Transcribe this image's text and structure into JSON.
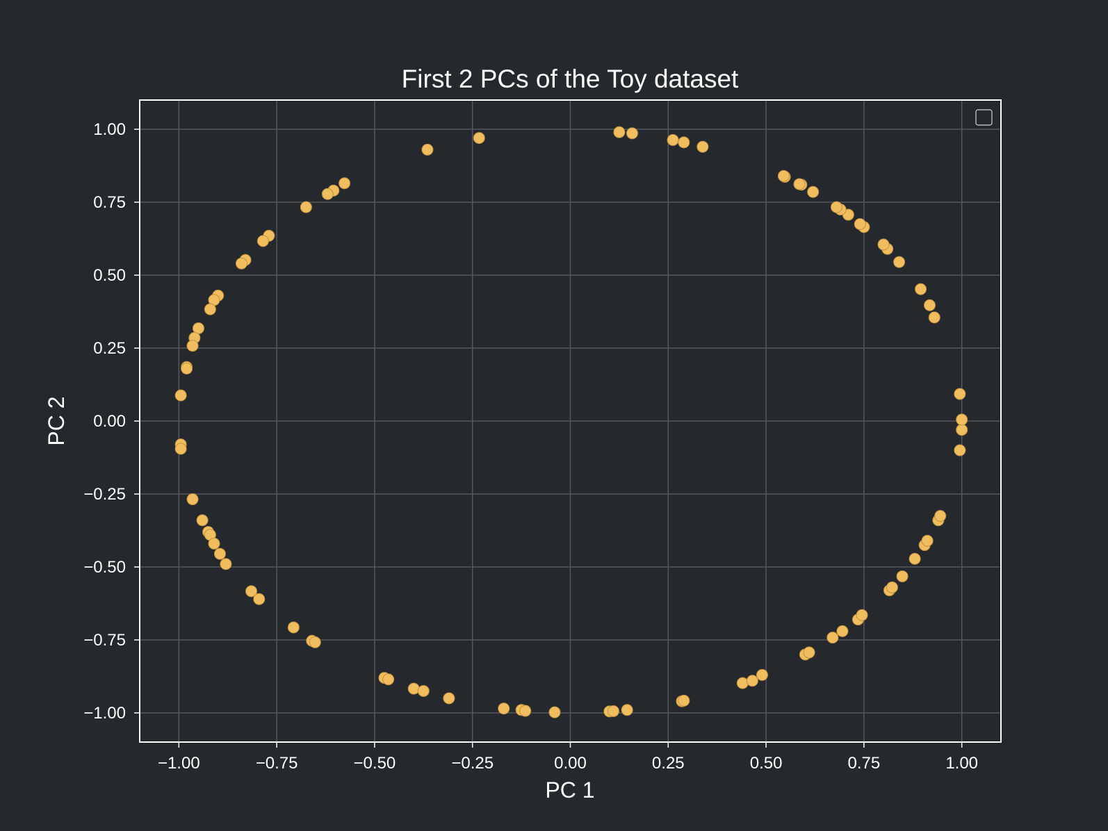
{
  "colors": {
    "background": "#25292e",
    "grid": "#54585d",
    "frame": "#ffffff",
    "marker_fill": "#f0be5f",
    "marker_edge": "#c09040",
    "text": "#ffffff"
  },
  "chart_data": {
    "type": "scatter",
    "title": "First 2 PCs of the Toy dataset",
    "xlabel": "PC 1",
    "ylabel": "PC 2",
    "xlim": [
      -1.1,
      1.1
    ],
    "ylim": [
      -1.1,
      1.1
    ],
    "xticks": [
      -1.0,
      -0.75,
      -0.5,
      -0.25,
      0.0,
      0.25,
      0.5,
      0.75,
      1.0
    ],
    "yticks": [
      -1.0,
      -0.75,
      -0.5,
      -0.25,
      0.0,
      0.25,
      0.5,
      0.75,
      1.0
    ],
    "xtick_labels": [
      "−1.00",
      "−0.75",
      "−0.50",
      "−0.25",
      "0.00",
      "0.25",
      "0.50",
      "0.75",
      "1.00"
    ],
    "ytick_labels": [
      "−1.00",
      "−0.75",
      "−0.50",
      "−0.25",
      "0.00",
      "0.25",
      "0.50",
      "0.75",
      "1.00"
    ],
    "grid": true,
    "legend": "top-right",
    "series": [
      {
        "points": [
          [
            0.125,
            0.99
          ],
          [
            0.158,
            0.986
          ],
          [
            0.262,
            0.963
          ],
          [
            0.29,
            0.955
          ],
          [
            0.338,
            0.94
          ],
          [
            -0.233,
            0.97
          ],
          [
            -0.365,
            0.93
          ],
          [
            -0.577,
            0.815
          ],
          [
            -0.605,
            0.79
          ],
          [
            -0.62,
            0.778
          ],
          [
            -0.675,
            0.733
          ],
          [
            -0.77,
            0.635
          ],
          [
            -0.785,
            0.617
          ],
          [
            -0.83,
            0.552
          ],
          [
            -0.84,
            0.54
          ],
          [
            -0.9,
            0.43
          ],
          [
            -0.91,
            0.415
          ],
          [
            -0.92,
            0.383
          ],
          [
            -0.95,
            0.318
          ],
          [
            -0.96,
            0.285
          ],
          [
            -0.965,
            0.258
          ],
          [
            -0.98,
            0.185
          ],
          [
            -0.98,
            0.18
          ],
          [
            -0.995,
            0.088
          ],
          [
            -0.995,
            -0.08
          ],
          [
            -0.995,
            -0.095
          ],
          [
            -0.965,
            -0.268
          ],
          [
            -0.94,
            -0.34
          ],
          [
            -0.925,
            -0.38
          ],
          [
            -0.92,
            -0.39
          ],
          [
            -0.91,
            -0.42
          ],
          [
            -0.895,
            -0.455
          ],
          [
            -0.88,
            -0.49
          ],
          [
            -0.815,
            -0.583
          ],
          [
            -0.795,
            -0.61
          ],
          [
            -0.707,
            -0.707
          ],
          [
            -0.66,
            -0.753
          ],
          [
            -0.652,
            -0.758
          ],
          [
            -0.475,
            -0.88
          ],
          [
            -0.465,
            -0.885
          ],
          [
            -0.4,
            -0.917
          ],
          [
            -0.375,
            -0.925
          ],
          [
            -0.31,
            -0.95
          ],
          [
            -0.17,
            -0.985
          ],
          [
            -0.125,
            -0.99
          ],
          [
            -0.115,
            -0.993
          ],
          [
            -0.04,
            -0.998
          ],
          [
            0.1,
            -0.995
          ],
          [
            0.11,
            -0.994
          ],
          [
            0.145,
            -0.99
          ],
          [
            0.285,
            -0.96
          ],
          [
            0.29,
            -0.958
          ],
          [
            0.44,
            -0.898
          ],
          [
            0.465,
            -0.89
          ],
          [
            0.49,
            -0.87
          ],
          [
            0.6,
            -0.8
          ],
          [
            0.61,
            -0.793
          ],
          [
            0.67,
            -0.742
          ],
          [
            0.695,
            -0.72
          ],
          [
            0.735,
            -0.68
          ],
          [
            0.745,
            -0.665
          ],
          [
            0.815,
            -0.58
          ],
          [
            0.822,
            -0.57
          ],
          [
            0.848,
            -0.532
          ],
          [
            0.88,
            -0.472
          ],
          [
            0.905,
            -0.425
          ],
          [
            0.912,
            -0.41
          ],
          [
            0.94,
            -0.34
          ],
          [
            0.945,
            -0.325
          ],
          [
            0.995,
            -0.1
          ],
          [
            1.0,
            -0.03
          ],
          [
            1.0,
            0.005
          ],
          [
            0.995,
            0.093
          ],
          [
            0.93,
            0.355
          ],
          [
            0.918,
            0.397
          ],
          [
            0.895,
            0.452
          ],
          [
            0.84,
            0.545
          ],
          [
            0.81,
            0.59
          ],
          [
            0.8,
            0.605
          ],
          [
            0.75,
            0.665
          ],
          [
            0.74,
            0.675
          ],
          [
            0.71,
            0.707
          ],
          [
            0.69,
            0.725
          ],
          [
            0.68,
            0.733
          ],
          [
            0.62,
            0.785
          ],
          [
            0.59,
            0.81
          ],
          [
            0.585,
            0.812
          ],
          [
            0.548,
            0.837
          ],
          [
            0.545,
            0.84
          ]
        ]
      }
    ]
  }
}
